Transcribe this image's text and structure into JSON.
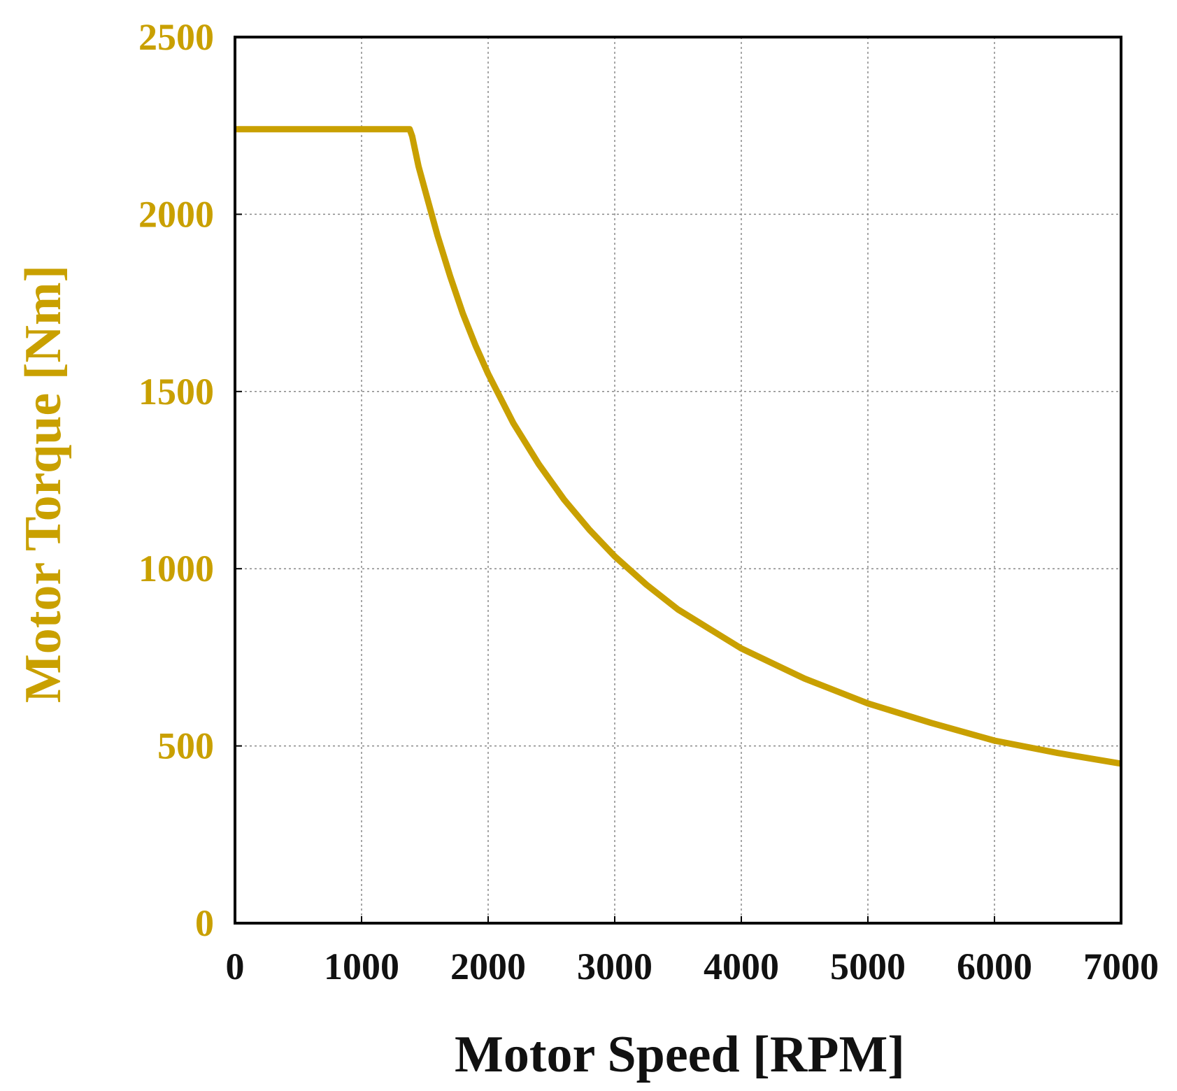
{
  "chart_data": {
    "type": "line",
    "title": "",
    "xlabel": "Motor Speed [RPM]",
    "ylabel": "Motor Torque [Nm]",
    "xlim": [
      0,
      7000
    ],
    "ylim": [
      0,
      2500
    ],
    "xticks": [
      0,
      1000,
      2000,
      3000,
      4000,
      5000,
      6000,
      7000
    ],
    "yticks": [
      0,
      500,
      1000,
      1500,
      2000,
      2500
    ],
    "grid": true,
    "legend": "none",
    "colors": {
      "series": "#c9a000",
      "ylabel": "#c9a000",
      "yticks": "#c9a000",
      "xticks": "#111111",
      "xlabel": "#111111",
      "frame": "#000000",
      "grid": "#888888"
    },
    "series": [
      {
        "name": "Motor Torque",
        "x": [
          0,
          700,
          1380,
          1400,
          1450,
          1500,
          1600,
          1700,
          1800,
          1900,
          2000,
          2200,
          2400,
          2600,
          2800,
          3000,
          3250,
          3500,
          3750,
          4000,
          4500,
          5000,
          5500,
          6000,
          6500,
          7000
        ],
        "y": [
          2240,
          2240,
          2240,
          2220,
          2135,
          2070,
          1940,
          1825,
          1720,
          1630,
          1550,
          1410,
          1295,
          1195,
          1110,
          1035,
          955,
          885,
          830,
          775,
          690,
          620,
          565,
          515,
          480,
          450
        ]
      }
    ]
  }
}
